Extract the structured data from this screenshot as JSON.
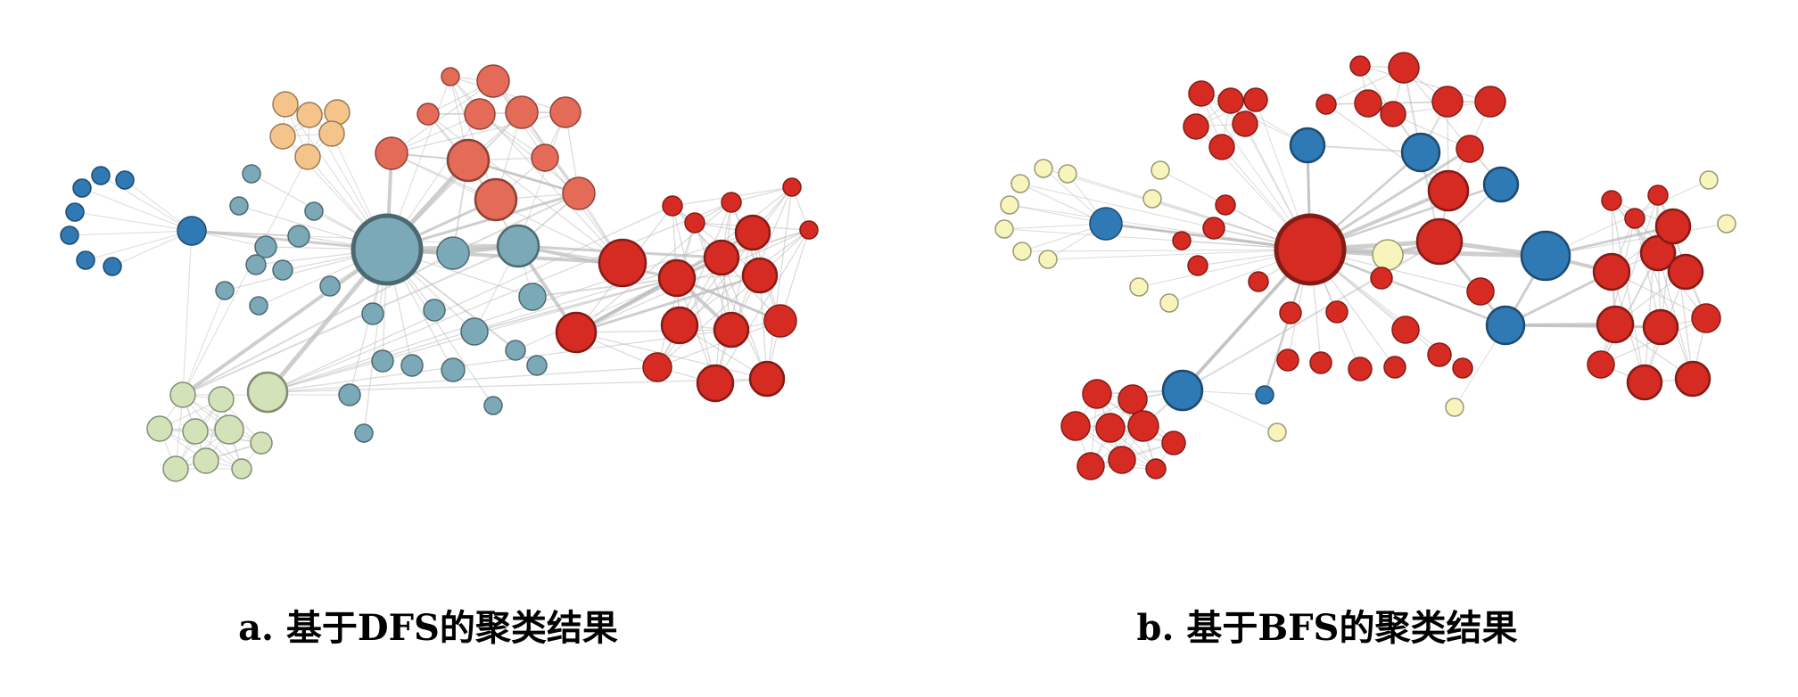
{
  "figures": [
    {
      "id": "a",
      "caption": "a. 基于DFS的聚类结果",
      "cluster_colors": {
        "blue": "#2f79b5",
        "teal": "#7ba9b7",
        "orange": "#f5c48b",
        "salmon": "#e36b57",
        "red": "#d62b22",
        "green": "#d3e2b8"
      },
      "node_count": 78
    },
    {
      "id": "b",
      "caption": "b. 基于BFS的聚类结果",
      "cluster_colors": {
        "red": "#d62b22",
        "blue": "#2f79b5",
        "yellow": "#f7f5bc"
      },
      "node_count": 78
    }
  ],
  "edge_color": "#bdbdbd"
}
